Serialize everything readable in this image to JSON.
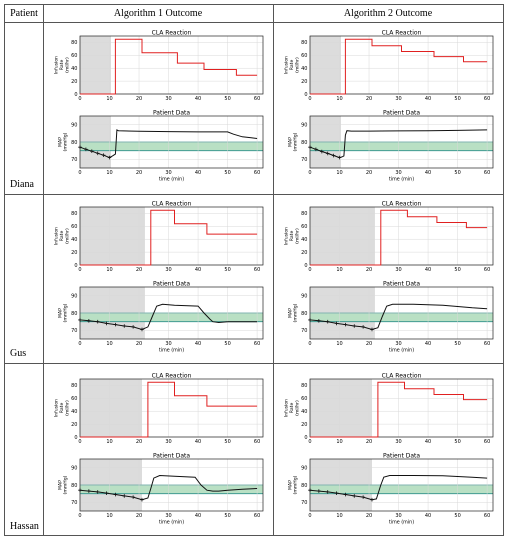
{
  "table": {
    "headers": [
      "Patient",
      "Algorithm 1 Outcome",
      "Algorithm 2 Outcome"
    ],
    "patients": [
      "Diana",
      "Gus",
      "Hassan"
    ]
  },
  "colors": {
    "infusion": "#e02020",
    "map": "#111111",
    "band_fill": "#b9e0c4",
    "band_line": "#2d8f8a",
    "shade": "#dcdcdc",
    "grid": "#d9d9d9"
  },
  "chart_data": [
    {
      "type": "line",
      "patient": "Diana",
      "algorithm": "Algorithm 1",
      "top": {
        "title": "CLA Reaction",
        "ylabel": "Infusion Rate (ml/hr)",
        "ylim": [
          0,
          90
        ],
        "yticks": [
          0,
          20,
          40,
          60,
          80
        ],
        "shade": [
          0,
          10.5
        ],
        "x": [
          0,
          10.5,
          10.5,
          12,
          12,
          21,
          21,
          33,
          33,
          42,
          42,
          53,
          53,
          60
        ],
        "y": [
          0,
          0,
          0,
          0,
          85,
          85,
          64,
          64,
          48,
          48,
          38,
          38,
          29,
          29
        ]
      },
      "bottom": {
        "title": "Patient Data",
        "ylabel": "MAP (mmHg)",
        "xlabel": "time (min)",
        "ylim": [
          65,
          95
        ],
        "yticks": [
          70,
          80,
          90
        ],
        "xlim": [
          0,
          60
        ],
        "xticks": [
          0,
          10,
          20,
          30,
          40,
          50,
          60
        ],
        "band": [
          75,
          80
        ],
        "shade": [
          0,
          10.5
        ],
        "x": [
          0,
          2,
          4,
          6,
          8,
          10,
          11,
          12,
          12.5,
          13,
          20,
          30,
          40,
          50,
          52,
          55,
          58,
          60
        ],
        "y": [
          77,
          75.8,
          74.7,
          73.5,
          72.4,
          71,
          72,
          73,
          87,
          86.5,
          86.2,
          86.0,
          85.8,
          85.8,
          84.5,
          83,
          82.5,
          82
        ],
        "markers_until": 10
      }
    },
    {
      "type": "line",
      "patient": "Diana",
      "algorithm": "Algorithm 2",
      "top": {
        "title": "CLA Reaction",
        "ylabel": "Infusion Rate (ml/hr)",
        "ylim": [
          0,
          90
        ],
        "yticks": [
          0,
          20,
          40,
          60,
          80
        ],
        "shade": [
          0,
          10.5
        ],
        "x": [
          0,
          10.5,
          10.5,
          12,
          12,
          21,
          21,
          31,
          31,
          42,
          42,
          52,
          52,
          60
        ],
        "y": [
          0,
          0,
          0,
          0,
          85,
          85,
          75,
          75,
          66,
          66,
          58,
          58,
          50,
          50
        ]
      },
      "bottom": {
        "title": "Patient Data",
        "ylabel": "MAP (mmHg)",
        "xlabel": "time (min)",
        "ylim": [
          65,
          95
        ],
        "yticks": [
          70,
          80,
          90
        ],
        "xlim": [
          0,
          60
        ],
        "xticks": [
          0,
          10,
          20,
          30,
          40,
          50,
          60
        ],
        "band": [
          75,
          80
        ],
        "shade": [
          0,
          10.5
        ],
        "x": [
          0,
          2,
          4,
          6,
          8,
          10,
          11,
          11.5,
          12,
          12.5,
          14,
          20,
          30,
          40,
          50,
          60
        ],
        "y": [
          77,
          75.8,
          74.5,
          73.4,
          72.2,
          71,
          71.5,
          72,
          84,
          86.5,
          86.3,
          86.3,
          86.4,
          86.5,
          86.7,
          87
        ],
        "markers_until": 10
      }
    },
    {
      "type": "line",
      "patient": "Gus",
      "algorithm": "Algorithm 1",
      "top": {
        "title": "CLA Reaction",
        "ylabel": "Infusion Rate (ml/hr)",
        "ylim": [
          0,
          90
        ],
        "yticks": [
          0,
          20,
          40,
          60,
          80
        ],
        "shade": [
          0,
          22
        ],
        "x": [
          0,
          22,
          22,
          24,
          24,
          32,
          32,
          43,
          43,
          60
        ],
        "y": [
          0,
          0,
          0,
          0,
          85,
          85,
          64,
          64,
          48,
          48
        ]
      },
      "bottom": {
        "title": "Patient Data",
        "ylabel": "MAP (mmHg)",
        "xlabel": "time (min)",
        "ylim": [
          65,
          95
        ],
        "yticks": [
          70,
          80,
          90
        ],
        "xlim": [
          0,
          60
        ],
        "xticks": [
          0,
          10,
          20,
          30,
          40,
          50,
          60
        ],
        "band": [
          75,
          80
        ],
        "shade": [
          0,
          22
        ],
        "x": [
          0,
          3,
          6,
          9,
          12,
          15,
          18,
          21,
          23,
          24.5,
          26,
          28,
          32,
          40,
          42,
          44,
          45,
          47,
          50,
          55,
          60
        ],
        "y": [
          76,
          75.5,
          75,
          74,
          73.3,
          72.5,
          72,
          70.5,
          72,
          78,
          84,
          85,
          84.5,
          84,
          80,
          76.5,
          75,
          74.5,
          75,
          75,
          75
        ],
        "markers_until": 21
      }
    },
    {
      "type": "line",
      "patient": "Gus",
      "algorithm": "Algorithm 2",
      "top": {
        "title": "CLA Reaction",
        "ylabel": "Infusion Rate (ml/hr)",
        "ylim": [
          0,
          90
        ],
        "yticks": [
          0,
          20,
          40,
          60,
          80
        ],
        "shade": [
          0,
          22
        ],
        "x": [
          0,
          22,
          22,
          24,
          24,
          33,
          33,
          43,
          43,
          53,
          53,
          60
        ],
        "y": [
          0,
          0,
          0,
          0,
          85,
          85,
          75,
          75,
          66,
          66,
          58,
          58
        ]
      },
      "bottom": {
        "title": "Patient Data",
        "ylabel": "MAP (mmHg)",
        "xlabel": "time (min)",
        "ylim": [
          65,
          95
        ],
        "yticks": [
          70,
          80,
          90
        ],
        "xlim": [
          0,
          60
        ],
        "xticks": [
          0,
          10,
          20,
          30,
          40,
          50,
          60
        ],
        "band": [
          75,
          80
        ],
        "shade": [
          0,
          22
        ],
        "x": [
          0,
          3,
          6,
          9,
          12,
          15,
          18,
          21,
          23,
          24.5,
          26,
          28,
          35,
          45,
          55,
          60
        ],
        "y": [
          76,
          75.5,
          75,
          74,
          73.3,
          72.5,
          72,
          70.5,
          71.5,
          78,
          84,
          85,
          85,
          84.5,
          83,
          82.5
        ],
        "markers_until": 21
      }
    },
    {
      "type": "line",
      "patient": "Hassan",
      "algorithm": "Algorithm 1",
      "top": {
        "title": "CLA Reaction",
        "ylabel": "Infusion Rate (ml/hr)",
        "ylim": [
          0,
          90
        ],
        "yticks": [
          0,
          20,
          40,
          60,
          80
        ],
        "shade": [
          0,
          21
        ],
        "x": [
          0,
          21,
          21,
          23,
          23,
          32,
          32,
          43,
          43,
          60
        ],
        "y": [
          0,
          0,
          0,
          0,
          85,
          85,
          64,
          64,
          48,
          48
        ]
      },
      "bottom": {
        "title": "Patient Data",
        "ylabel": "MAP (mmHg)",
        "xlabel": "time (min)",
        "ylim": [
          65,
          95
        ],
        "yticks": [
          70,
          80,
          90
        ],
        "xlim": [
          0,
          60
        ],
        "xticks": [
          0,
          10,
          20,
          30,
          40,
          50,
          60
        ],
        "band": [
          75,
          80
        ],
        "shade": [
          0,
          21
        ],
        "x": [
          0,
          3,
          6,
          9,
          12,
          15,
          18,
          21,
          23,
          24,
          25,
          27,
          32,
          39,
          41,
          43,
          45,
          47,
          50,
          55,
          60
        ],
        "y": [
          77,
          76.5,
          76,
          75.3,
          74.5,
          73.7,
          73,
          71.5,
          72.5,
          78,
          84,
          85.5,
          85,
          84.5,
          80,
          77,
          76.5,
          76.5,
          77,
          77.5,
          78
        ],
        "markers_until": 21
      }
    },
    {
      "type": "line",
      "patient": "Hassan",
      "algorithm": "Algorithm 2",
      "top": {
        "title": "CLA Reaction",
        "ylabel": "Infusion Rate (ml/hr)",
        "ylim": [
          0,
          90
        ],
        "yticks": [
          0,
          20,
          40,
          60,
          80
        ],
        "shade": [
          0,
          21
        ],
        "x": [
          0,
          21,
          21,
          23,
          23,
          32,
          32,
          42,
          42,
          52,
          52,
          60
        ],
        "y": [
          0,
          0,
          0,
          0,
          85,
          85,
          75,
          75,
          66,
          66,
          58,
          58
        ]
      },
      "bottom": {
        "title": "Patient Data",
        "ylabel": "MAP (mmHg)",
        "xlabel": "time (min)",
        "ylim": [
          65,
          95
        ],
        "yticks": [
          70,
          80,
          90
        ],
        "xlim": [
          0,
          60
        ],
        "xticks": [
          0,
          10,
          20,
          30,
          40,
          50,
          60
        ],
        "band": [
          75,
          80
        ],
        "shade": [
          0,
          21
        ],
        "x": [
          0,
          3,
          6,
          9,
          12,
          15,
          18,
          21,
          22.5,
          24,
          25,
          27,
          35,
          45,
          55,
          60
        ],
        "y": [
          77,
          76.5,
          76,
          75.3,
          74.5,
          73.7,
          73,
          71.5,
          72,
          80,
          84.5,
          85.5,
          85.5,
          85.3,
          84.5,
          84
        ],
        "markers_until": 21
      }
    }
  ]
}
